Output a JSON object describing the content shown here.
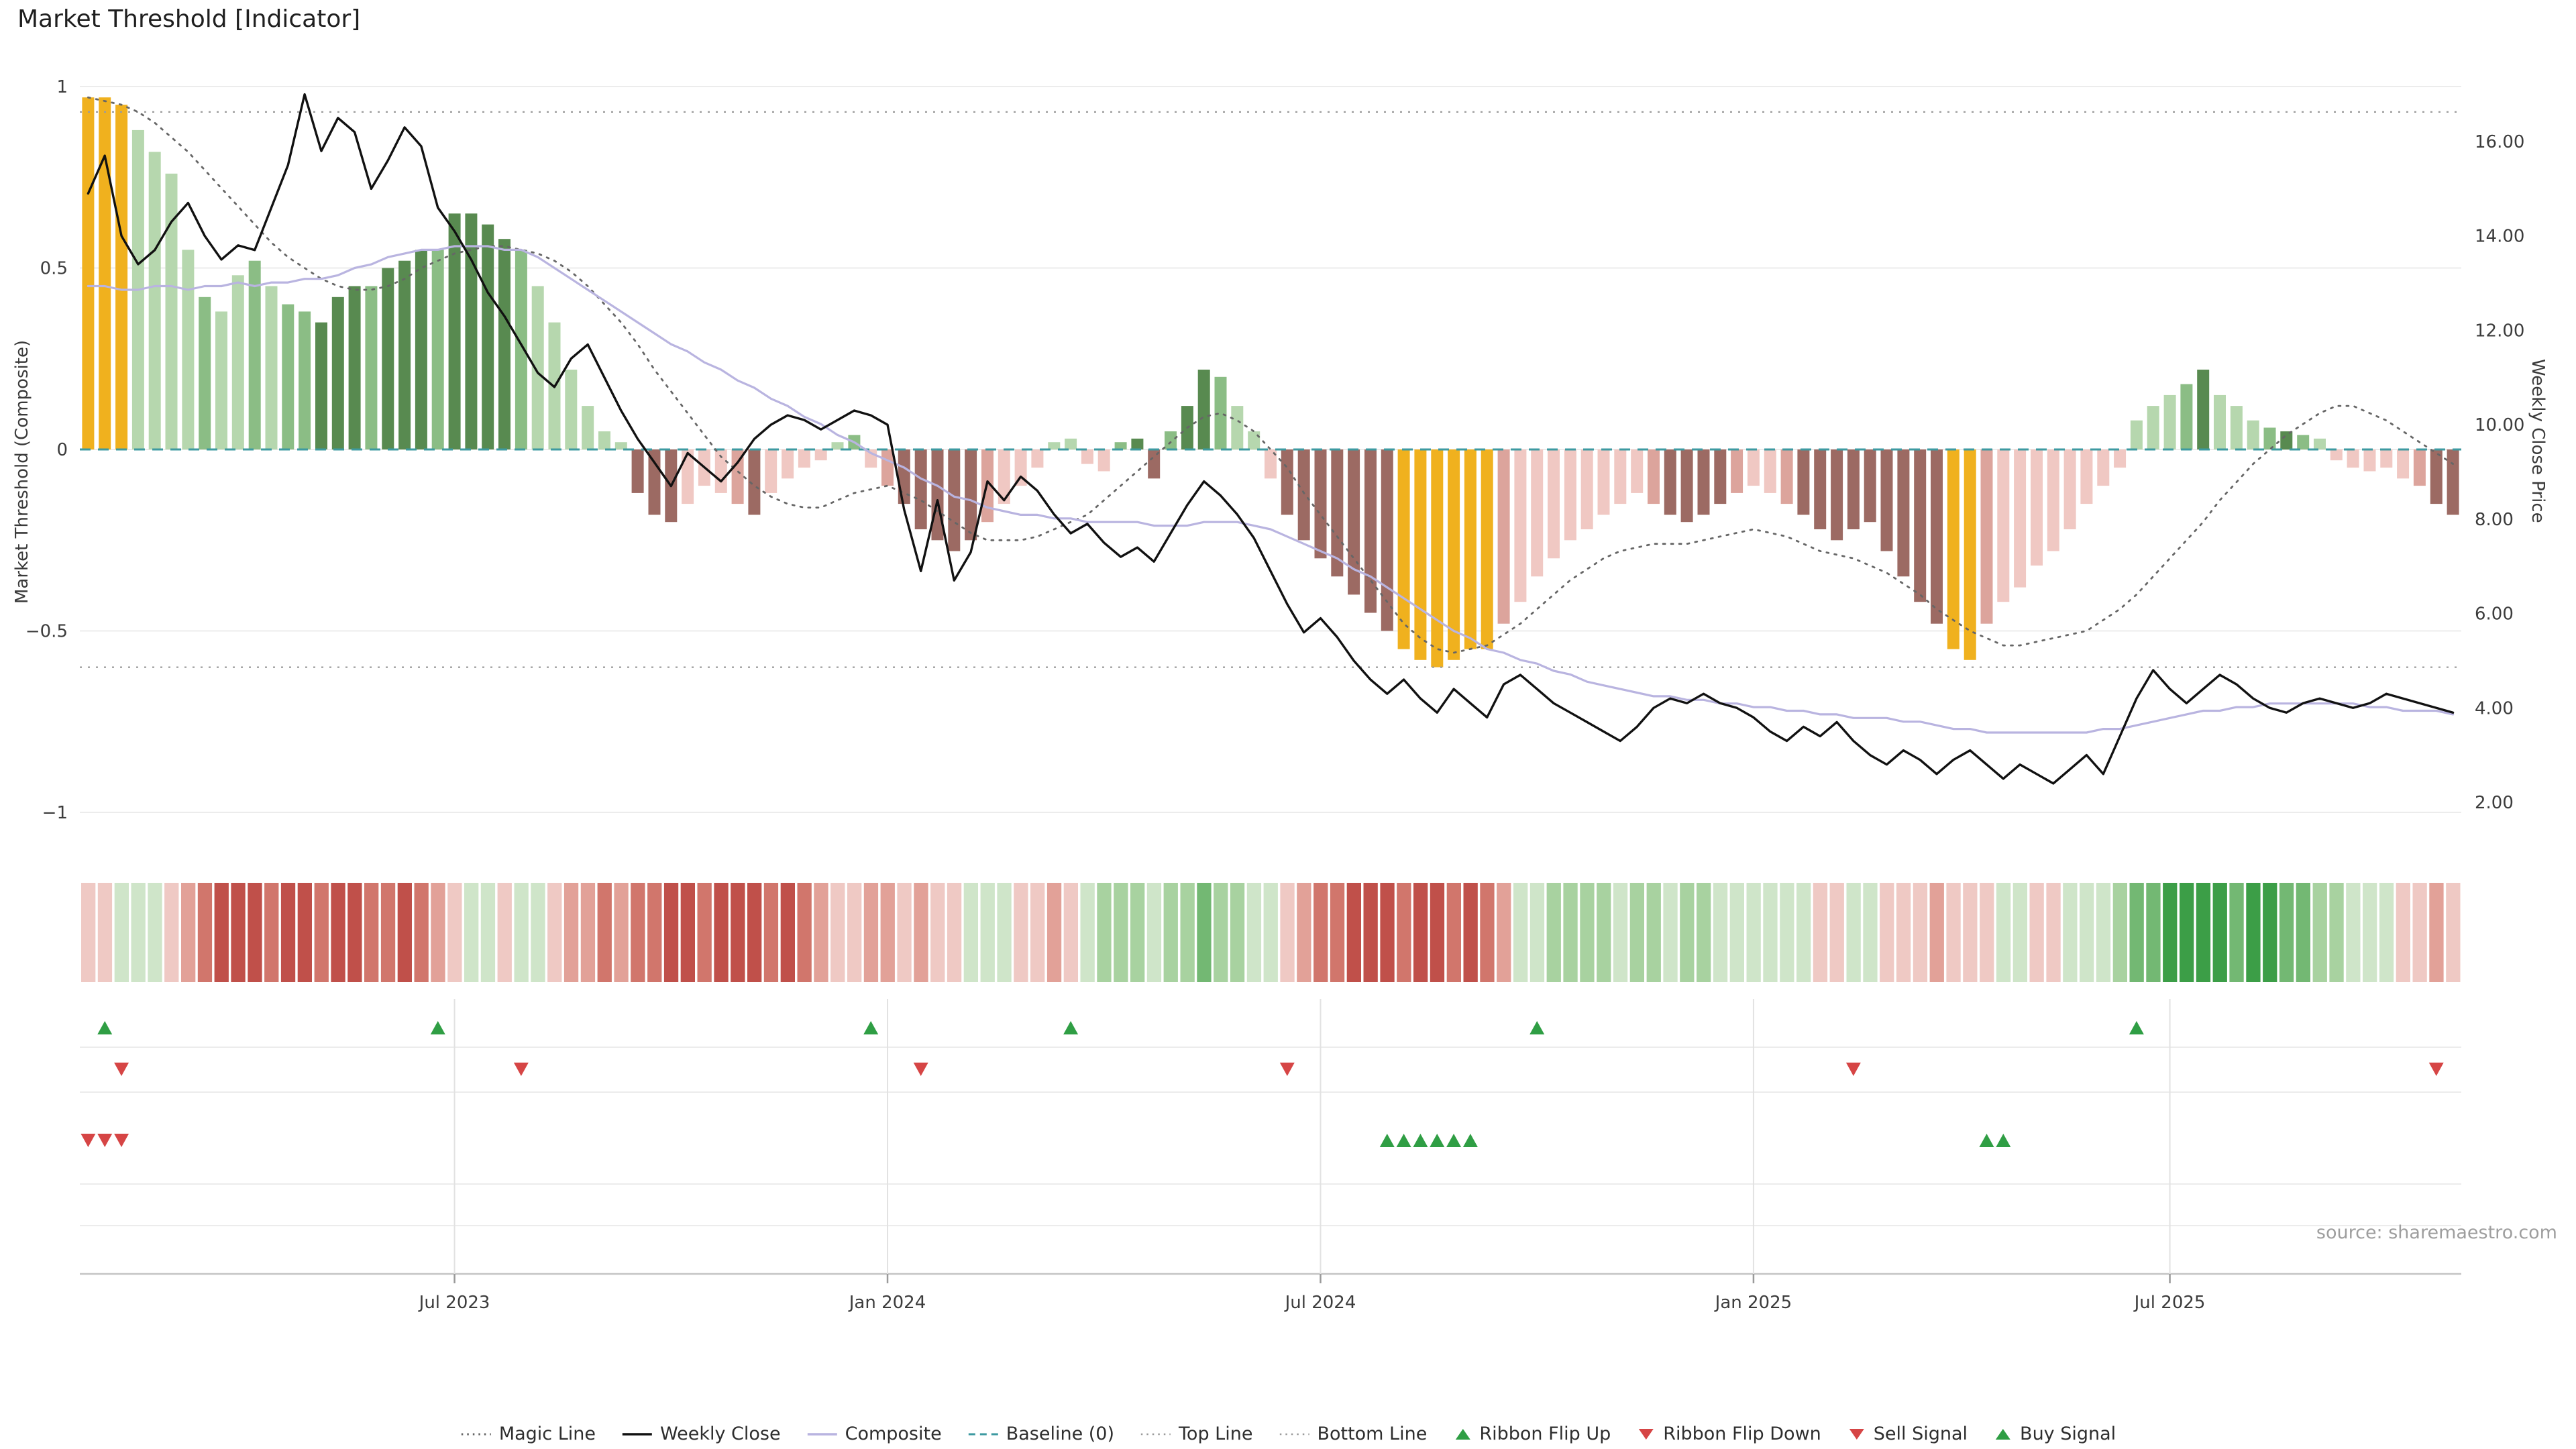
{
  "title": "Market Threshold [Indicator]",
  "source": "source: sharemaestro.com",
  "legend": {
    "items": [
      {
        "label": "Magic Line",
        "swatch": "dotted-dark"
      },
      {
        "label": "Weekly Close",
        "swatch": "solid-black"
      },
      {
        "label": "Composite",
        "swatch": "solid-purple"
      },
      {
        "label": "Baseline (0)",
        "swatch": "dashed-teal"
      },
      {
        "label": "Top Line",
        "swatch": "dotted-light"
      },
      {
        "label": "Bottom Line",
        "swatch": "dotted-light"
      },
      {
        "label": "Ribbon Flip Up",
        "swatch": "tri-up"
      },
      {
        "label": "Ribbon Flip Down",
        "swatch": "tri-down"
      },
      {
        "label": "Sell Signal",
        "swatch": "tri-down"
      },
      {
        "label": "Buy Signal",
        "swatch": "tri-up"
      }
    ]
  },
  "chart_data": {
    "type": "combo",
    "weeks": 143,
    "x_ticks": [
      {
        "label": "Jul 2023",
        "week": 22
      },
      {
        "label": "Jan 2024",
        "week": 48
      },
      {
        "label": "Jul 2024",
        "week": 74
      },
      {
        "label": "Jan 2025",
        "week": 100
      },
      {
        "label": "Jul 2025",
        "week": 125
      }
    ],
    "y_left": {
      "label": "Market Threshold (Composite)",
      "ticks": [
        {
          "value": 1,
          "label": "1"
        },
        {
          "value": 0.5,
          "label": "0.5"
        },
        {
          "value": 0,
          "label": "0"
        },
        {
          "value": -0.5,
          "label": "−0.5"
        },
        {
          "value": -1,
          "label": "−1"
        }
      ],
      "range": [
        -1.1,
        1.03
      ]
    },
    "y_right": {
      "label": "Weekly Close Price",
      "ticks": [
        {
          "value": 16,
          "label": "16.00"
        },
        {
          "value": 14,
          "label": "14.00"
        },
        {
          "value": 12,
          "label": "12.00"
        },
        {
          "value": 10,
          "label": "10.00"
        },
        {
          "value": 8,
          "label": "8.00"
        },
        {
          "value": 6,
          "label": "6.00"
        },
        {
          "value": 4,
          "label": "4.00"
        },
        {
          "value": 2,
          "label": "2.00"
        }
      ],
      "range": [
        1.0,
        17.4
      ]
    },
    "reference_lines": {
      "top_line": 0.93,
      "baseline": 0,
      "bottom_line": -0.6
    },
    "bars": {
      "name": "Market Threshold (Composite)",
      "values": [
        0.97,
        0.97,
        0.95,
        0.88,
        0.82,
        0.76,
        0.55,
        0.42,
        0.38,
        0.48,
        0.52,
        0.45,
        0.4,
        0.38,
        0.35,
        0.42,
        0.45,
        0.45,
        0.5,
        0.52,
        0.55,
        0.55,
        0.65,
        0.65,
        0.62,
        0.58,
        0.55,
        0.45,
        0.35,
        0.22,
        0.12,
        0.05,
        0.02,
        -0.12,
        -0.18,
        -0.2,
        -0.15,
        -0.1,
        -0.12,
        -0.15,
        -0.18,
        -0.12,
        -0.08,
        -0.05,
        -0.03,
        0.02,
        0.04,
        -0.05,
        -0.1,
        -0.15,
        -0.22,
        -0.25,
        -0.28,
        -0.25,
        -0.2,
        -0.15,
        -0.1,
        -0.05,
        0.02,
        0.03,
        -0.04,
        -0.06,
        0.02,
        0.03,
        -0.08,
        0.05,
        0.12,
        0.22,
        0.2,
        0.12,
        0.05,
        -0.08,
        -0.18,
        -0.25,
        -0.3,
        -0.35,
        -0.4,
        -0.45,
        -0.5,
        -0.55,
        -0.58,
        -0.6,
        -0.58,
        -0.55,
        -0.55,
        -0.48,
        -0.42,
        -0.35,
        -0.3,
        -0.25,
        -0.22,
        -0.18,
        -0.15,
        -0.12,
        -0.15,
        -0.18,
        -0.2,
        -0.18,
        -0.15,
        -0.12,
        -0.1,
        -0.12,
        -0.15,
        -0.18,
        -0.22,
        -0.25,
        -0.22,
        -0.2,
        -0.28,
        -0.35,
        -0.42,
        -0.48,
        -0.55,
        -0.58,
        -0.48,
        -0.42,
        -0.38,
        -0.32,
        -0.28,
        -0.22,
        -0.15,
        -0.1,
        -0.05,
        0.08,
        0.12,
        0.15,
        0.18,
        0.22,
        0.15,
        0.12,
        0.08,
        0.06,
        0.05,
        0.04,
        0.03,
        -0.03,
        -0.05,
        -0.06,
        -0.05,
        -0.08,
        -0.1,
        -0.15,
        -0.18
      ],
      "colors": [
        "au",
        "au",
        "au",
        "g1",
        "g1",
        "g1",
        "g1",
        "g2",
        "g1",
        "g1",
        "g2",
        "g1",
        "g2",
        "g2",
        "g3",
        "g3",
        "g3",
        "g2",
        "g3",
        "g3",
        "g3",
        "g2",
        "g3",
        "g3",
        "g3",
        "g3",
        "g2",
        "g1",
        "g1",
        "g1",
        "g1",
        "g1",
        "g1",
        "ma",
        "ma",
        "ma",
        "p1",
        "p1",
        "p1",
        "p2",
        "ma",
        "p1",
        "p1",
        "p1",
        "p1",
        "g1",
        "g2",
        "p1",
        "p2",
        "ma",
        "ma",
        "ma",
        "ma",
        "ma",
        "p2",
        "p1",
        "p1",
        "p1",
        "g1",
        "g1",
        "p1",
        "p1",
        "g2",
        "g3",
        "ma",
        "g2",
        "g3",
        "g3",
        "g2",
        "g1",
        "g1",
        "p1",
        "ma",
        "ma",
        "ma",
        "ma",
        "ma",
        "ma",
        "ma",
        "au",
        "au",
        "au",
        "au",
        "au",
        "au",
        "p2",
        "p1",
        "p1",
        "p1",
        "p1",
        "p1",
        "p1",
        "p1",
        "p1",
        "p2",
        "ma",
        "ma",
        "ma",
        "ma",
        "p2",
        "p1",
        "p1",
        "p2",
        "ma",
        "ma",
        "ma",
        "ma",
        "ma",
        "ma",
        "ma",
        "ma",
        "ma",
        "au",
        "au",
        "p2",
        "p1",
        "p1",
        "p1",
        "p1",
        "p1",
        "p1",
        "p1",
        "p1",
        "g1",
        "g1",
        "g1",
        "g2",
        "g3",
        "g1",
        "g1",
        "g1",
        "g2",
        "g3",
        "g2",
        "g1",
        "p1",
        "p1",
        "p1",
        "p1",
        "p1",
        "p2",
        "ma",
        "ma"
      ]
    },
    "series": [
      {
        "name": "Weekly Close",
        "axis": "right",
        "type": "line",
        "values": [
          14.9,
          15.7,
          14.0,
          13.4,
          13.7,
          14.3,
          14.7,
          14.0,
          13.5,
          13.8,
          13.7,
          14.6,
          15.5,
          17.0,
          15.8,
          16.5,
          16.2,
          15.0,
          15.6,
          16.3,
          15.9,
          14.6,
          14.1,
          13.5,
          12.8,
          12.3,
          11.7,
          11.1,
          10.8,
          11.4,
          11.7,
          11.0,
          10.3,
          9.7,
          9.2,
          8.7,
          9.4,
          9.1,
          8.8,
          9.2,
          9.7,
          10.0,
          10.2,
          10.1,
          9.9,
          10.1,
          10.3,
          10.2,
          10.0,
          8.2,
          6.9,
          8.4,
          6.7,
          7.3,
          8.8,
          8.4,
          8.9,
          8.6,
          8.1,
          7.7,
          7.9,
          7.5,
          7.2,
          7.4,
          7.1,
          7.7,
          8.3,
          8.8,
          8.5,
          8.1,
          7.6,
          6.9,
          6.2,
          5.6,
          5.9,
          5.5,
          5.0,
          4.6,
          4.3,
          4.6,
          4.2,
          3.9,
          4.4,
          4.1,
          3.8,
          4.5,
          4.7,
          4.4,
          4.1,
          3.9,
          3.7,
          3.5,
          3.3,
          3.6,
          4.0,
          4.2,
          4.1,
          4.3,
          4.1,
          4.0,
          3.8,
          3.5,
          3.3,
          3.6,
          3.4,
          3.7,
          3.3,
          3.0,
          2.8,
          3.1,
          2.9,
          2.6,
          2.9,
          3.1,
          2.8,
          2.5,
          2.8,
          2.6,
          2.4,
          2.7,
          3.0,
          2.6,
          3.4,
          4.2,
          4.8,
          4.4,
          4.1,
          4.4,
          4.7,
          4.5,
          4.2,
          4.0,
          3.9,
          4.1,
          4.2,
          4.1,
          4.0,
          4.1,
          4.3,
          4.2,
          4.1,
          4.0,
          3.9
        ]
      },
      {
        "name": "Composite",
        "axis": "left",
        "type": "line",
        "values": [
          0.45,
          0.45,
          0.44,
          0.44,
          0.45,
          0.45,
          0.44,
          0.45,
          0.45,
          0.46,
          0.45,
          0.46,
          0.46,
          0.47,
          0.47,
          0.48,
          0.5,
          0.51,
          0.53,
          0.54,
          0.55,
          0.55,
          0.56,
          0.56,
          0.56,
          0.55,
          0.55,
          0.53,
          0.5,
          0.47,
          0.44,
          0.41,
          0.38,
          0.35,
          0.32,
          0.29,
          0.27,
          0.24,
          0.22,
          0.19,
          0.17,
          0.14,
          0.12,
          0.09,
          0.07,
          0.04,
          0.02,
          -0.01,
          -0.03,
          -0.05,
          -0.08,
          -0.1,
          -0.13,
          -0.14,
          -0.16,
          -0.17,
          -0.18,
          -0.18,
          -0.19,
          -0.19,
          -0.2,
          -0.2,
          -0.2,
          -0.2,
          -0.21,
          -0.21,
          -0.21,
          -0.2,
          -0.2,
          -0.2,
          -0.21,
          -0.22,
          -0.24,
          -0.26,
          -0.28,
          -0.3,
          -0.33,
          -0.35,
          -0.38,
          -0.41,
          -0.44,
          -0.47,
          -0.5,
          -0.52,
          -0.55,
          -0.56,
          -0.58,
          -0.59,
          -0.61,
          -0.62,
          -0.64,
          -0.65,
          -0.66,
          -0.67,
          -0.68,
          -0.68,
          -0.69,
          -0.69,
          -0.7,
          -0.7,
          -0.71,
          -0.71,
          -0.72,
          -0.72,
          -0.73,
          -0.73,
          -0.74,
          -0.74,
          -0.74,
          -0.75,
          -0.75,
          -0.76,
          -0.77,
          -0.77,
          -0.78,
          -0.78,
          -0.78,
          -0.78,
          -0.78,
          -0.78,
          -0.78,
          -0.77,
          -0.77,
          -0.76,
          -0.75,
          -0.74,
          -0.73,
          -0.72,
          -0.72,
          -0.71,
          -0.71,
          -0.7,
          -0.7,
          -0.7,
          -0.7,
          -0.7,
          -0.7,
          -0.71,
          -0.71,
          -0.72,
          -0.72,
          -0.72,
          -0.73
        ]
      },
      {
        "name": "Magic Line",
        "axis": "left",
        "type": "line",
        "style": "dotted",
        "values": [
          0.97,
          0.96,
          0.95,
          0.93,
          0.9,
          0.86,
          0.82,
          0.77,
          0.72,
          0.67,
          0.62,
          0.57,
          0.53,
          0.5,
          0.47,
          0.45,
          0.44,
          0.44,
          0.45,
          0.47,
          0.5,
          0.52,
          0.54,
          0.55,
          0.56,
          0.56,
          0.55,
          0.54,
          0.52,
          0.49,
          0.45,
          0.4,
          0.35,
          0.29,
          0.22,
          0.16,
          0.1,
          0.04,
          -0.02,
          -0.06,
          -0.1,
          -0.13,
          -0.15,
          -0.16,
          -0.16,
          -0.14,
          -0.12,
          -0.11,
          -0.1,
          -0.12,
          -0.14,
          -0.17,
          -0.2,
          -0.23,
          -0.25,
          -0.25,
          -0.25,
          -0.24,
          -0.22,
          -0.2,
          -0.18,
          -0.14,
          -0.1,
          -0.06,
          -0.02,
          0.02,
          0.06,
          0.09,
          0.1,
          0.08,
          0.05,
          0.0,
          -0.05,
          -0.12,
          -0.18,
          -0.24,
          -0.3,
          -0.36,
          -0.42,
          -0.48,
          -0.52,
          -0.55,
          -0.56,
          -0.55,
          -0.54,
          -0.51,
          -0.48,
          -0.44,
          -0.4,
          -0.36,
          -0.33,
          -0.3,
          -0.28,
          -0.27,
          -0.26,
          -0.26,
          -0.26,
          -0.25,
          -0.24,
          -0.23,
          -0.22,
          -0.23,
          -0.24,
          -0.26,
          -0.28,
          -0.29,
          -0.3,
          -0.32,
          -0.34,
          -0.37,
          -0.4,
          -0.44,
          -0.47,
          -0.5,
          -0.52,
          -0.54,
          -0.54,
          -0.53,
          -0.52,
          -0.51,
          -0.5,
          -0.47,
          -0.44,
          -0.4,
          -0.35,
          -0.3,
          -0.25,
          -0.2,
          -0.14,
          -0.09,
          -0.04,
          0.0,
          0.04,
          0.07,
          0.1,
          0.12,
          0.12,
          0.1,
          0.08,
          0.05,
          0.02,
          -0.01,
          -0.04
        ]
      }
    ],
    "ribbon": {
      "values": [
        "r1",
        "r1",
        "g1",
        "g1",
        "g1",
        "r1",
        "r2",
        "r3",
        "r4",
        "r4",
        "r4",
        "r3",
        "r4",
        "r4",
        "r3",
        "r4",
        "r4",
        "r3",
        "r3",
        "r4",
        "r3",
        "r2",
        "r1",
        "g1",
        "g1",
        "r1",
        "g1",
        "g1",
        "r1",
        "r2",
        "r2",
        "r3",
        "r2",
        "r3",
        "r3",
        "r4",
        "r4",
        "r3",
        "r4",
        "r4",
        "r4",
        "r3",
        "r4",
        "r3",
        "r2",
        "r1",
        "r1",
        "r2",
        "r2",
        "r1",
        "r2",
        "r1",
        "r1",
        "g1",
        "g1",
        "g1",
        "r1",
        "r1",
        "r2",
        "r1",
        "g1",
        "g2",
        "g2",
        "g2",
        "g1",
        "g2",
        "g2",
        "g3",
        "g2",
        "g2",
        "g1",
        "g1",
        "r1",
        "r2",
        "r3",
        "r3",
        "r4",
        "r4",
        "r4",
        "r3",
        "r4",
        "r4",
        "r3",
        "r4",
        "r3",
        "r2",
        "g1",
        "g1",
        "g2",
        "g2",
        "g2",
        "g2",
        "g1",
        "g2",
        "g2",
        "g1",
        "g2",
        "g2",
        "g1",
        "g1",
        "g1",
        "g1",
        "g1",
        "g1",
        "r1",
        "r1",
        "g1",
        "g1",
        "r1",
        "r1",
        "r1",
        "r2",
        "r1",
        "r1",
        "r1",
        "g1",
        "g1",
        "r1",
        "r1",
        "g1",
        "g1",
        "g1",
        "g2",
        "g3",
        "g3",
        "g4",
        "g4",
        "g4",
        "g4",
        "g3",
        "g4",
        "g4",
        "g3",
        "g3",
        "g2",
        "g2",
        "g1",
        "g1",
        "g1",
        "r1",
        "r1",
        "r2",
        "r1"
      ]
    },
    "signals": {
      "ribbon_flip_up": {
        "label": "Ribbon Flip Up",
        "weeks": [
          1,
          21,
          47,
          59,
          87,
          123
        ]
      },
      "ribbon_flip_down": {
        "label": "Ribbon Flip Down",
        "weeks": [
          2,
          26,
          50,
          72,
          106,
          141
        ]
      },
      "sell": {
        "label": "Sell Signal",
        "weeks": [
          0,
          1,
          2
        ]
      },
      "buy": {
        "label": "Buy Signal",
        "weeks": [
          78,
          79,
          80,
          81,
          82,
          83,
          114,
          115
        ]
      }
    },
    "palette": {
      "bar": {
        "au": "#f0b11e",
        "g1": "#b6d7ae",
        "g2": "#8bbd85",
        "g3": "#588a50",
        "p1": "#f0c8c3",
        "p2": "#dca49c",
        "ma": "#9c6a63"
      },
      "ribbon": {
        "r4": "#c0504a",
        "r3": "#d1766c",
        "r2": "#e2a198",
        "r1": "#efc9c4",
        "g1": "#cfe5c9",
        "g2": "#a8d2a0",
        "g3": "#73b873",
        "g4": "#3c9e47"
      },
      "lines": {
        "weekly_close": "#111111",
        "composite": "#b9b4e0",
        "magic": "#666666",
        "baseline": "#3d9aa1",
        "top_bottom": "#9b9b9b"
      },
      "signals": {
        "up": "#2f9e44",
        "down": "#d64545"
      }
    }
  }
}
